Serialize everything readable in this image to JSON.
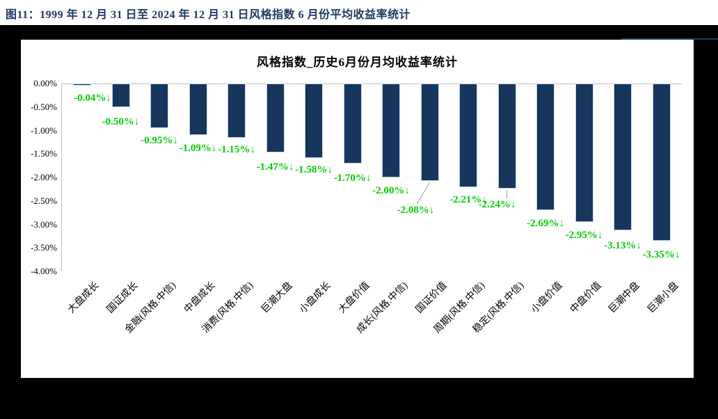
{
  "figure_caption": "图11：1999 年 12 月 31 日至 2024 年 12 月 31 日风格指数 6 月份平均收益率统计",
  "chart_data": {
    "type": "bar",
    "title": "风格指数_历史6月份月均收益率统计",
    "categories": [
      "大盘成长",
      "国证成长",
      "金融(风格.中信)",
      "中盘成长",
      "消费(风格.中信)",
      "巨潮大盘",
      "小盘成长",
      "大盘价值",
      "成长(风格.中信)",
      "国证价值",
      "周期(风格.中信)",
      "稳定(风格.中信)",
      "小盘价值",
      "中盘价值",
      "巨潮中盘",
      "巨潮小盘"
    ],
    "values": [
      -0.04,
      -0.5,
      -0.95,
      -1.09,
      -1.15,
      -1.47,
      -1.58,
      -1.7,
      -2.0,
      -2.08,
      -2.21,
      -2.24,
      -2.69,
      -2.95,
      -3.13,
      -3.35
    ],
    "value_labels": [
      "-0.04%↓",
      "-0.50%↓",
      "-0.95%↓",
      "-1.09%↓",
      "-1.15%↓",
      "-1.47%↓",
      "-1.58%↓",
      "-1.70%↓",
      "-2.00%↓",
      "-2.08%↓",
      "-2.21%↓",
      "-2.24%↓",
      "-2.69%↓",
      "-2.95%↓",
      "-3.13%↓",
      "-3.35%↓"
    ],
    "ytick_labels": [
      "0.00%",
      "-0.50%",
      "-1.00%",
      "-1.50%",
      "-2.00%",
      "-2.50%",
      "-3.00%",
      "-3.50%",
      "-4.00%"
    ],
    "ylim": [
      -4.0,
      0.0
    ],
    "xlabel": "",
    "ylabel": "",
    "grid": false,
    "legend": null,
    "bar_color": "#17365D",
    "value_label_color": "#00CC00",
    "down_arrow_icon": "↓"
  },
  "colors": {
    "page_background": "#000000",
    "panel_background": "#FFFFFF",
    "caption_text": "#1F3864",
    "axis_line": "#BFBFBF",
    "leader_line": "#A6A6A6"
  }
}
